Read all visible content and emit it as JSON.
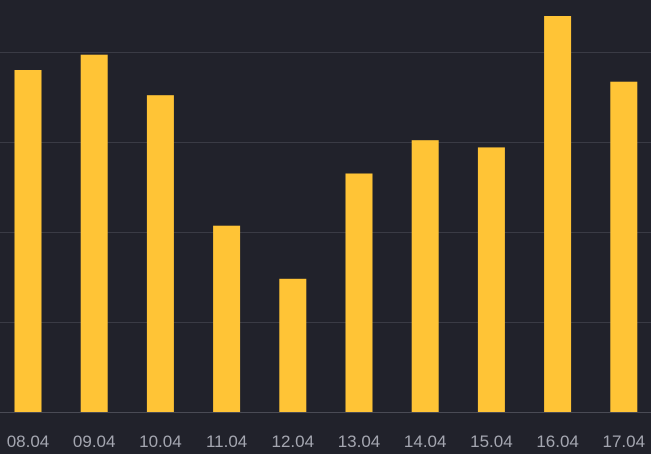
{
  "chart_data": {
    "type": "bar",
    "categories": [
      "08.04",
      "09.04",
      "10.04",
      "11.04",
      "12.04",
      "13.04",
      "14.04",
      "15.04",
      "16.04",
      "17.04"
    ],
    "values": [
      3.8,
      3.97,
      3.52,
      2.07,
      1.48,
      2.65,
      3.02,
      2.94,
      4.4,
      3.67
    ],
    "ylim": [
      0,
      5
    ],
    "grid": true,
    "colors": {
      "bar": "#ffc436",
      "background": "#21222b",
      "grid": "#3a3b45",
      "tick_label": "#a4a6b0"
    }
  }
}
